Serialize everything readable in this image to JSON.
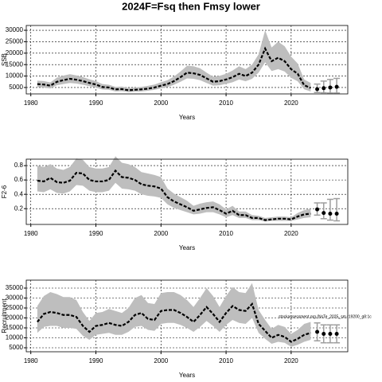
{
  "chart_data": [
    {
      "type": "line",
      "title": "2024F=Fsq then Fmsy lower",
      "ylabel": "SSB",
      "xlabel": "Years",
      "x": [
        1981,
        1982,
        1983,
        1984,
        1985,
        1986,
        1987,
        1988,
        1989,
        1990,
        1991,
        1992,
        1993,
        1994,
        1995,
        1996,
        1997,
        1998,
        1999,
        2000,
        2001,
        2002,
        2003,
        2004,
        2005,
        2006,
        2007,
        2008,
        2009,
        2010,
        2011,
        2012,
        2013,
        2014,
        2015,
        2016,
        2017,
        2018,
        2019,
        2020,
        2021,
        2022,
        2023
      ],
      "values": [
        6500,
        6300,
        5800,
        7500,
        8200,
        8800,
        8400,
        7800,
        7000,
        6300,
        5200,
        5000,
        4200,
        4300,
        3800,
        4000,
        4200,
        4500,
        5000,
        5800,
        6500,
        7800,
        9500,
        11500,
        11200,
        10500,
        9000,
        7500,
        7800,
        8500,
        9500,
        11000,
        10000,
        11500,
        15000,
        22000,
        16500,
        18000,
        16500,
        13000,
        11000,
        6000,
        4800
      ],
      "upper": [
        8000,
        7800,
        7200,
        9300,
        10200,
        10800,
        10300,
        9600,
        8600,
        7800,
        6500,
        6200,
        5300,
        5400,
        4800,
        5000,
        5300,
        5700,
        6300,
        7300,
        8200,
        9800,
        12000,
        14500,
        14300,
        13400,
        11500,
        9700,
        10100,
        11000,
        12400,
        14300,
        13000,
        15000,
        19500,
        30000,
        22500,
        25000,
        23000,
        18500,
        15500,
        8500,
        7000
      ],
      "lower": [
        5200,
        5000,
        4600,
        6000,
        6500,
        7000,
        6700,
        6200,
        5600,
        5000,
        4100,
        4000,
        3300,
        3400,
        3000,
        3200,
        3300,
        3600,
        4000,
        4600,
        5200,
        6200,
        7500,
        9000,
        8800,
        8200,
        7000,
        5800,
        6000,
        6600,
        7300,
        8500,
        7700,
        8800,
        11500,
        16000,
        12200,
        13000,
        12000,
        9200,
        7700,
        4200,
        3300
      ],
      "projection": {
        "x": [
          2024,
          2025,
          2026,
          2027
        ],
        "values": [
          4300,
          4700,
          5000,
          5300
        ],
        "lower": [
          2800,
          2700,
          2600,
          2600
        ],
        "upper": [
          6500,
          7800,
          8500,
          9000
        ]
      },
      "xlim": [
        1979.3,
        2028.7
      ],
      "xticks": [
        1980,
        1990,
        2000,
        2010,
        2020
      ],
      "ylim": [
        2200,
        32100
      ],
      "yticks": [
        5000,
        10000,
        15000,
        20000,
        25000,
        30000
      ],
      "grid": true,
      "color": "#000000",
      "band_color": "#bebebe",
      "projection_color": "#9e9e9e"
    },
    {
      "type": "line",
      "ylabel": "F2-6",
      "xlabel": "Years",
      "x": [
        1981,
        1982,
        1983,
        1984,
        1985,
        1986,
        1987,
        1988,
        1989,
        1990,
        1991,
        1992,
        1993,
        1994,
        1995,
        1996,
        1997,
        1998,
        1999,
        2000,
        2001,
        2002,
        2003,
        2004,
        2005,
        2006,
        2007,
        2008,
        2009,
        2010,
        2011,
        2012,
        2013,
        2014,
        2015,
        2016,
        2017,
        2018,
        2019,
        2020,
        2021,
        2022,
        2023
      ],
      "values": [
        0.59,
        0.58,
        0.63,
        0.57,
        0.56,
        0.59,
        0.7,
        0.69,
        0.6,
        0.58,
        0.58,
        0.6,
        0.73,
        0.64,
        0.63,
        0.6,
        0.54,
        0.52,
        0.51,
        0.48,
        0.36,
        0.3,
        0.26,
        0.22,
        0.17,
        0.19,
        0.21,
        0.22,
        0.18,
        0.13,
        0.17,
        0.11,
        0.11,
        0.07,
        0.07,
        0.04,
        0.05,
        0.06,
        0.06,
        0.05,
        0.09,
        0.12,
        0.13
      ],
      "upper": [
        0.8,
        0.78,
        0.82,
        0.76,
        0.74,
        0.78,
        0.9,
        0.88,
        0.78,
        0.76,
        0.76,
        0.78,
        0.93,
        0.84,
        0.82,
        0.78,
        0.71,
        0.69,
        0.67,
        0.64,
        0.48,
        0.41,
        0.36,
        0.31,
        0.24,
        0.27,
        0.29,
        0.3,
        0.26,
        0.19,
        0.24,
        0.16,
        0.16,
        0.11,
        0.1,
        0.07,
        0.08,
        0.09,
        0.09,
        0.08,
        0.14,
        0.18,
        0.2
      ],
      "lower": [
        0.44,
        0.43,
        0.47,
        0.42,
        0.41,
        0.44,
        0.53,
        0.52,
        0.45,
        0.43,
        0.43,
        0.45,
        0.56,
        0.48,
        0.47,
        0.45,
        0.4,
        0.38,
        0.37,
        0.35,
        0.26,
        0.21,
        0.18,
        0.15,
        0.12,
        0.13,
        0.15,
        0.15,
        0.12,
        0.08,
        0.11,
        0.07,
        0.07,
        0.04,
        0.04,
        0.02,
        0.03,
        0.03,
        0.03,
        0.03,
        0.05,
        0.07,
        0.08
      ],
      "projection": {
        "x": [
          2024,
          2025,
          2026,
          2027
        ],
        "values": [
          0.19,
          0.14,
          0.13,
          0.13
        ],
        "lower": [
          0.11,
          0.06,
          0.04,
          0.03
        ],
        "upper": [
          0.28,
          0.28,
          0.33,
          0.34
        ]
      },
      "xlim": [
        1979.3,
        2028.7
      ],
      "xticks": [
        1980,
        1990,
        2000,
        2010,
        2020
      ],
      "ylim": [
        -0.02,
        0.89
      ],
      "yticks": [
        0.2,
        0.4,
        0.6,
        0.8
      ],
      "grid": true,
      "color": "#000000",
      "band_color": "#bebebe",
      "projection_color": "#9e9e9e"
    },
    {
      "type": "line",
      "ylabel": "Recruitment",
      "xlabel": "Years",
      "annotation": "stockassessment.org (NsTe_2025_sm.r19200_g8:1c",
      "x": [
        1981,
        1982,
        1983,
        1984,
        1985,
        1986,
        1987,
        1988,
        1989,
        1990,
        1991,
        1992,
        1993,
        1994,
        1995,
        1996,
        1997,
        1998,
        1999,
        2000,
        2001,
        2002,
        2003,
        2004,
        2005,
        2006,
        2007,
        2008,
        2009,
        2010,
        2011,
        2012,
        2013,
        2014,
        2015,
        2016,
        2017,
        2018,
        2019,
        2020,
        2021,
        2022,
        2023
      ],
      "values": [
        18000,
        22000,
        23000,
        22500,
        21500,
        21500,
        20500,
        16000,
        13000,
        16000,
        16500,
        17500,
        16500,
        16000,
        18000,
        21500,
        22500,
        19500,
        19000,
        23500,
        24000,
        24000,
        22500,
        20500,
        18000,
        21500,
        25500,
        22000,
        18000,
        22500,
        26000,
        24000,
        23500,
        27000,
        17000,
        13500,
        10000,
        11500,
        10500,
        8000,
        9500,
        11500,
        12500
      ],
      "upper": [
        26000,
        31000,
        33000,
        32000,
        30500,
        30500,
        29000,
        23000,
        18500,
        22500,
        23000,
        24500,
        23500,
        22500,
        25000,
        30000,
        31500,
        27500,
        27000,
        32500,
        33000,
        33000,
        31500,
        29000,
        25500,
        30000,
        35000,
        31000,
        25500,
        31000,
        35500,
        33000,
        32500,
        37500,
        24000,
        19000,
        14500,
        16500,
        15500,
        12000,
        14000,
        17000,
        18000
      ],
      "lower": [
        12500,
        15500,
        16000,
        16000,
        15000,
        15000,
        14500,
        11000,
        9000,
        11500,
        12000,
        12500,
        11500,
        11500,
        13000,
        15500,
        16000,
        14000,
        13500,
        17000,
        17500,
        17500,
        16500,
        15000,
        13000,
        15500,
        18500,
        16000,
        13000,
        16500,
        19000,
        17500,
        17000,
        20000,
        12500,
        9500,
        7000,
        8000,
        7500,
        5500,
        6500,
        8000,
        9000
      ],
      "projection": {
        "x": [
          2024,
          2025,
          2026,
          2027
        ],
        "values": [
          13000,
          12000,
          12000,
          12000
        ],
        "lower": [
          8500,
          7500,
          7500,
          7500
        ],
        "upper": [
          17500,
          16500,
          16500,
          16500
        ]
      },
      "xlim": [
        1979.3,
        2028.7
      ],
      "xticks": [
        1980,
        1990,
        2000,
        2010,
        2020
      ],
      "ylim": [
        3000,
        39000
      ],
      "yticks": [
        5000,
        10000,
        15000,
        20000,
        25000,
        30000,
        35000
      ],
      "grid": true,
      "color": "#000000",
      "band_color": "#bebebe",
      "projection_color": "#9e9e9e"
    }
  ]
}
